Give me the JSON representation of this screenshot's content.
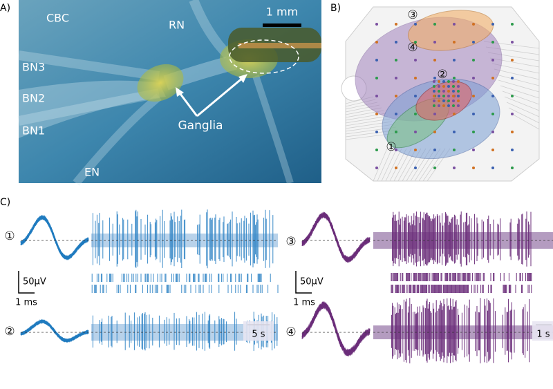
{
  "panel_a": {
    "label": "A)",
    "scale_bar": "1 mm",
    "nerves": [
      "CBC",
      "RN",
      "BN3",
      "BN2",
      "BN1",
      "EN"
    ],
    "annotation": "Ganglia"
  },
  "panel_b": {
    "label": "B)",
    "units": [
      "①",
      "②",
      "③",
      "④"
    ]
  },
  "panel_c": {
    "label": "C)",
    "units": [
      "①",
      "②",
      "③",
      "④"
    ],
    "left_scale": {
      "amplitude": "50µV",
      "time": "1 ms",
      "trace_time": "5 s"
    },
    "right_scale": {
      "amplitude": "50µV",
      "time": "1 ms",
      "trace_time": "1 s"
    }
  }
}
